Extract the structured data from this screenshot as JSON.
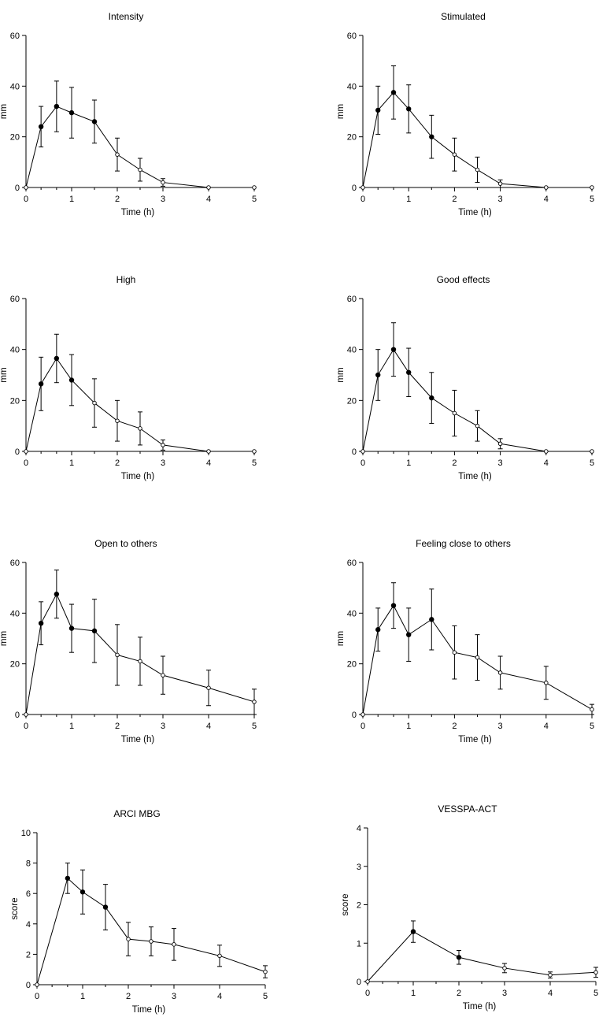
{
  "chart_data": [
    {
      "type": "line",
      "title": "Intensity",
      "xlabel": "Time (h)",
      "ylabel": "mm",
      "xlim": [
        0,
        5
      ],
      "ylim": [
        0,
        60
      ],
      "xticks": [
        0,
        1,
        2,
        3,
        4,
        5
      ],
      "yticks": [
        0,
        20,
        40,
        60
      ],
      "x_minor_ticks": [
        0.33,
        0.67,
        1.5,
        2.5
      ],
      "points": [
        {
          "x": 0,
          "y": 0,
          "err": 0,
          "filled": false
        },
        {
          "x": 0.33,
          "y": 24,
          "err": 8,
          "filled": true
        },
        {
          "x": 0.67,
          "y": 32,
          "err": 10,
          "filled": true
        },
        {
          "x": 1,
          "y": 29.5,
          "err": 10,
          "filled": true
        },
        {
          "x": 1.5,
          "y": 26,
          "err": 8.5,
          "filled": true
        },
        {
          "x": 2,
          "y": 13,
          "err": 6.5,
          "filled": false
        },
        {
          "x": 2.5,
          "y": 7,
          "err": 4.5,
          "filled": false
        },
        {
          "x": 3,
          "y": 2,
          "err": 1.5,
          "filled": false
        },
        {
          "x": 4,
          "y": 0,
          "err": 0,
          "filled": false
        },
        {
          "x": 5,
          "y": 0,
          "err": 0,
          "filled": false
        }
      ]
    },
    {
      "type": "line",
      "title": "Stimulated",
      "xlabel": "Time (h)",
      "ylabel": "mm",
      "xlim": [
        0,
        5
      ],
      "ylim": [
        0,
        60
      ],
      "xticks": [
        0,
        1,
        2,
        3,
        4,
        5
      ],
      "yticks": [
        0,
        20,
        40,
        60
      ],
      "x_minor_ticks": [
        0.33,
        0.67,
        1.5,
        2.5
      ],
      "points": [
        {
          "x": 0,
          "y": 0,
          "err": 0,
          "filled": false
        },
        {
          "x": 0.33,
          "y": 30.5,
          "err": 9.5,
          "filled": true
        },
        {
          "x": 0.67,
          "y": 37.5,
          "err": 10.5,
          "filled": true
        },
        {
          "x": 1,
          "y": 31,
          "err": 9.5,
          "filled": true
        },
        {
          "x": 1.5,
          "y": 20,
          "err": 8.5,
          "filled": true
        },
        {
          "x": 2,
          "y": 13,
          "err": 6.5,
          "filled": false
        },
        {
          "x": 2.5,
          "y": 7,
          "err": 5,
          "filled": false
        },
        {
          "x": 3,
          "y": 1.5,
          "err": 1.5,
          "filled": false
        },
        {
          "x": 4,
          "y": 0,
          "err": 0,
          "filled": false
        },
        {
          "x": 5,
          "y": 0,
          "err": 0,
          "filled": false
        }
      ]
    },
    {
      "type": "line",
      "title": "High",
      "xlabel": "Time (h)",
      "ylabel": "mm",
      "xlim": [
        0,
        5
      ],
      "ylim": [
        0,
        60
      ],
      "xticks": [
        0,
        1,
        2,
        3,
        4,
        5
      ],
      "yticks": [
        0,
        20,
        40,
        60
      ],
      "x_minor_ticks": [
        0.33,
        0.67,
        1.5,
        2.5
      ],
      "points": [
        {
          "x": 0,
          "y": 0,
          "err": 0,
          "filled": false
        },
        {
          "x": 0.33,
          "y": 26.5,
          "err": 10.5,
          "filled": true
        },
        {
          "x": 0.67,
          "y": 36.5,
          "err": 9.5,
          "filled": true
        },
        {
          "x": 1,
          "y": 28,
          "err": 10,
          "filled": true
        },
        {
          "x": 1.5,
          "y": 19,
          "err": 9.5,
          "filled": false
        },
        {
          "x": 2,
          "y": 12,
          "err": 8,
          "filled": false
        },
        {
          "x": 2.5,
          "y": 9,
          "err": 6.5,
          "filled": false
        },
        {
          "x": 3,
          "y": 2.5,
          "err": 2,
          "filled": false
        },
        {
          "x": 4,
          "y": 0,
          "err": 0,
          "filled": false
        },
        {
          "x": 5,
          "y": 0,
          "err": 0,
          "filled": false
        }
      ]
    },
    {
      "type": "line",
      "title": "Good effects",
      "xlabel": "Time (h)",
      "ylabel": "mm",
      "xlim": [
        0,
        5
      ],
      "ylim": [
        0,
        60
      ],
      "xticks": [
        0,
        1,
        2,
        3,
        4,
        5
      ],
      "yticks": [
        0,
        20,
        40,
        60
      ],
      "x_minor_ticks": [
        0.33,
        0.67,
        1.5,
        2.5
      ],
      "points": [
        {
          "x": 0,
          "y": 0,
          "err": 0,
          "filled": false
        },
        {
          "x": 0.33,
          "y": 30,
          "err": 10,
          "filled": true
        },
        {
          "x": 0.67,
          "y": 40,
          "err": 10.5,
          "filled": true
        },
        {
          "x": 1,
          "y": 31,
          "err": 9.5,
          "filled": true
        },
        {
          "x": 1.5,
          "y": 21,
          "err": 10,
          "filled": true
        },
        {
          "x": 2,
          "y": 15,
          "err": 9,
          "filled": false
        },
        {
          "x": 2.5,
          "y": 10,
          "err": 6,
          "filled": false
        },
        {
          "x": 3,
          "y": 3,
          "err": 2,
          "filled": false
        },
        {
          "x": 4,
          "y": 0,
          "err": 0,
          "filled": false
        },
        {
          "x": 5,
          "y": 0,
          "err": 0,
          "filled": false
        }
      ]
    },
    {
      "type": "line",
      "title": "Open to others",
      "xlabel": "Time (h)",
      "ylabel": "mm",
      "xlim": [
        0,
        5
      ],
      "ylim": [
        0,
        60
      ],
      "xticks": [
        0,
        1,
        2,
        3,
        4,
        5
      ],
      "yticks": [
        0,
        20,
        40,
        60
      ],
      "x_minor_ticks": [
        0.33,
        0.67,
        1.5,
        2.5
      ],
      "points": [
        {
          "x": 0,
          "y": 0,
          "err": 0,
          "filled": false
        },
        {
          "x": 0.33,
          "y": 36,
          "err": 8.5,
          "filled": true
        },
        {
          "x": 0.67,
          "y": 47.5,
          "err": 9.5,
          "filled": true
        },
        {
          "x": 1,
          "y": 34,
          "err": 9.5,
          "filled": true
        },
        {
          "x": 1.5,
          "y": 33,
          "err": 12.5,
          "filled": true
        },
        {
          "x": 2,
          "y": 23.5,
          "err": 12,
          "filled": false
        },
        {
          "x": 2.5,
          "y": 21,
          "err": 9.5,
          "filled": false
        },
        {
          "x": 3,
          "y": 15.5,
          "err": 7.5,
          "filled": false
        },
        {
          "x": 4,
          "y": 10.5,
          "err": 7,
          "filled": false
        },
        {
          "x": 5,
          "y": 5,
          "err": 5,
          "filled": false
        }
      ]
    },
    {
      "type": "line",
      "title": "Feeling close to others",
      "xlabel": "Time (h)",
      "ylabel": "mm",
      "xlim": [
        0,
        5
      ],
      "ylim": [
        0,
        60
      ],
      "xticks": [
        0,
        1,
        2,
        3,
        4,
        5
      ],
      "yticks": [
        0,
        20,
        40,
        60
      ],
      "x_minor_ticks": [
        0.33,
        0.67,
        1.5,
        2.5
      ],
      "points": [
        {
          "x": 0,
          "y": 0,
          "err": 0,
          "filled": false
        },
        {
          "x": 0.33,
          "y": 33.5,
          "err": 8.5,
          "filled": true
        },
        {
          "x": 0.67,
          "y": 43,
          "err": 9,
          "filled": true
        },
        {
          "x": 1,
          "y": 31.5,
          "err": 10.5,
          "filled": true
        },
        {
          "x": 1.5,
          "y": 37.5,
          "err": 12,
          "filled": true
        },
        {
          "x": 2,
          "y": 24.5,
          "err": 10.5,
          "filled": false
        },
        {
          "x": 2.5,
          "y": 22.5,
          "err": 9,
          "filled": false
        },
        {
          "x": 3,
          "y": 16.5,
          "err": 6.5,
          "filled": false
        },
        {
          "x": 4,
          "y": 12.5,
          "err": 6.5,
          "filled": false
        },
        {
          "x": 5,
          "y": 2,
          "err": 2,
          "filled": false
        }
      ]
    },
    {
      "type": "line",
      "title": "ARCI MBG",
      "xlabel": "Time (h)",
      "ylabel": "score",
      "xlim": [
        0,
        5
      ],
      "ylim": [
        0,
        10
      ],
      "xticks": [
        0,
        1,
        2,
        3,
        4,
        5
      ],
      "yticks": [
        0,
        2,
        4,
        6,
        8,
        10
      ],
      "x_minor_ticks": [
        0.33,
        0.67,
        1.5,
        2.5
      ],
      "points": [
        {
          "x": 0,
          "y": 0,
          "err": 0,
          "filled": false
        },
        {
          "x": 0.67,
          "y": 7,
          "err": 1,
          "filled": true
        },
        {
          "x": 1,
          "y": 6.1,
          "err": 1.45,
          "filled": true
        },
        {
          "x": 1.5,
          "y": 5.1,
          "err": 1.5,
          "filled": true
        },
        {
          "x": 2,
          "y": 3,
          "err": 1.1,
          "filled": false
        },
        {
          "x": 2.5,
          "y": 2.85,
          "err": 0.95,
          "filled": false
        },
        {
          "x": 3,
          "y": 2.65,
          "err": 1.05,
          "filled": false
        },
        {
          "x": 4,
          "y": 1.9,
          "err": 0.7,
          "filled": false
        },
        {
          "x": 5,
          "y": 0.85,
          "err": 0.4,
          "filled": false
        }
      ]
    },
    {
      "type": "line",
      "title": "VESSPA-ACT",
      "xlabel": "Time (h)",
      "ylabel": "score",
      "xlim": [
        0,
        5
      ],
      "ylim": [
        0,
        4
      ],
      "xticks": [
        0,
        1,
        2,
        3,
        4,
        5
      ],
      "yticks": [
        0,
        1,
        2,
        3,
        4
      ],
      "x_minor_ticks": [
        0.33,
        0.67,
        1.5,
        2.5
      ],
      "points": [
        {
          "x": 0,
          "y": 0,
          "err": 0,
          "filled": false
        },
        {
          "x": 1,
          "y": 1.3,
          "err": 0.28,
          "filled": true
        },
        {
          "x": 2,
          "y": 0.63,
          "err": 0.18,
          "filled": true
        },
        {
          "x": 3,
          "y": 0.35,
          "err": 0.12,
          "filled": false
        },
        {
          "x": 4,
          "y": 0.17,
          "err": 0.08,
          "filled": false
        },
        {
          "x": 5,
          "y": 0.24,
          "err": 0.13,
          "filled": false
        }
      ]
    }
  ]
}
